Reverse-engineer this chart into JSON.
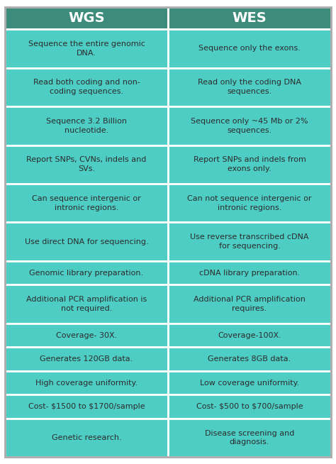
{
  "header_bg": "#3d8b7a",
  "cell_bg": "#4ecdc4",
  "header_text_color": "#ffffff",
  "cell_text_color": "#2c2c2c",
  "border_color": "#ffffff",
  "outer_border_color": "#cccccc",
  "header": [
    "WGS",
    "WES"
  ],
  "rows": [
    [
      "Sequence the entire genomic\nDNA.",
      "Sequence only the exons."
    ],
    [
      "Read both coding and non-\ncoding sequences.",
      "Read only the coding DNA\nsequences."
    ],
    [
      "Sequence 3.2 Billion\nnucleotide.",
      "Sequence only ~45 Mb or 2%\nsequences."
    ],
    [
      "Report SNPs, CVNs, indels and\nSVs.",
      "Report SNPs and indels from\nexons only."
    ],
    [
      "Can sequence intergenic or\nintronic regions.",
      "Can not sequence intergenic or\nintronic regions."
    ],
    [
      "Use direct DNA for sequencing.",
      "Use reverse transcribed cDNA\nfor sequencing."
    ],
    [
      "Genomic library preparation.",
      "cDNA library preparation."
    ],
    [
      "Additional PCR amplification is\nnot required.",
      "Additional PCR amplification\nrequires."
    ],
    [
      "Coverage- 30X.",
      "Coverage-100X."
    ],
    [
      "Generates 120GB data.",
      "Generates 8GB data."
    ],
    [
      "High coverage uniformity.",
      "Low coverage uniformity."
    ],
    [
      "Cost- $1500 to $1700/sample",
      "Cost- $500 to $700/sample"
    ],
    [
      "Genetic research.",
      "Disease screening and\ndiagnosis."
    ]
  ],
  "fig_width": 4.74,
  "fig_height": 6.54,
  "dpi": 100
}
